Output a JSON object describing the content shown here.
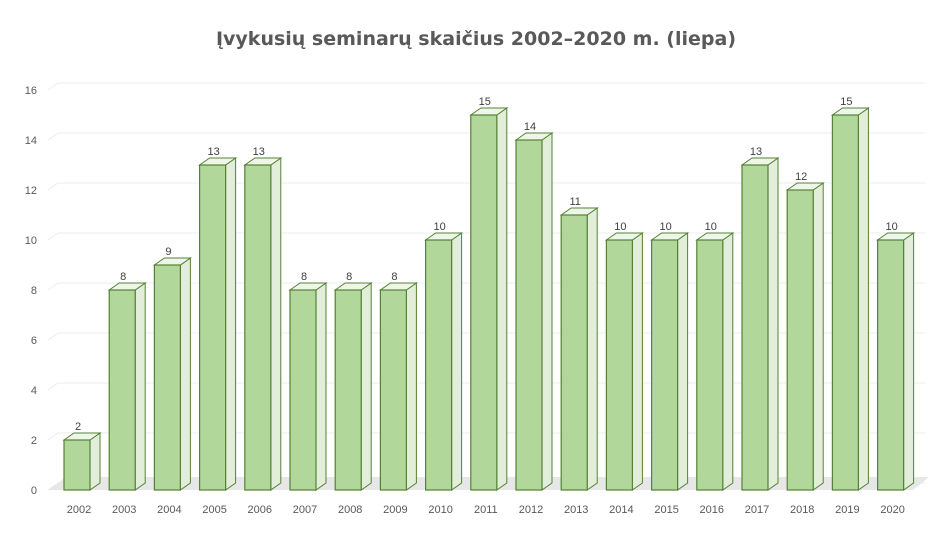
{
  "chart_data": {
    "type": "bar",
    "title": "Įvykusių seminarų skaičius 2002–2020 m. (liepa)",
    "xlabel": "",
    "ylabel": "",
    "ylim": [
      0,
      16
    ],
    "y_ticks": [
      "0",
      "2",
      "4",
      "6",
      "8",
      "10",
      "12",
      "14",
      "16"
    ],
    "grid": true,
    "style": "3d-column",
    "categories": [
      "2002",
      "2003",
      "2004",
      "2005",
      "2006",
      "2007",
      "2008",
      "2009",
      "2010",
      "2011",
      "2012",
      "2013",
      "2014",
      "2015",
      "2016",
      "2017",
      "2018",
      "2019",
      "2020"
    ],
    "values": [
      2,
      8,
      9,
      13,
      13,
      8,
      8,
      8,
      10,
      15,
      14,
      11,
      10,
      10,
      10,
      13,
      12,
      15,
      10
    ],
    "data_labels": [
      "2",
      "8",
      "9",
      "13",
      "13",
      "8",
      "8",
      "8",
      "10",
      "15",
      "14",
      "11",
      "10",
      "10",
      "10",
      "13",
      "12",
      "15",
      "10"
    ],
    "colors": {
      "bar_fill": "#a9d18e",
      "bar_front": "#b2d79a",
      "bar_side": "#e2eed9",
      "bar_top": "#eef6e9",
      "bar_stroke": "#548235",
      "grid": "#ececec",
      "floor": "#e7e7e7",
      "text": "#595959"
    }
  }
}
